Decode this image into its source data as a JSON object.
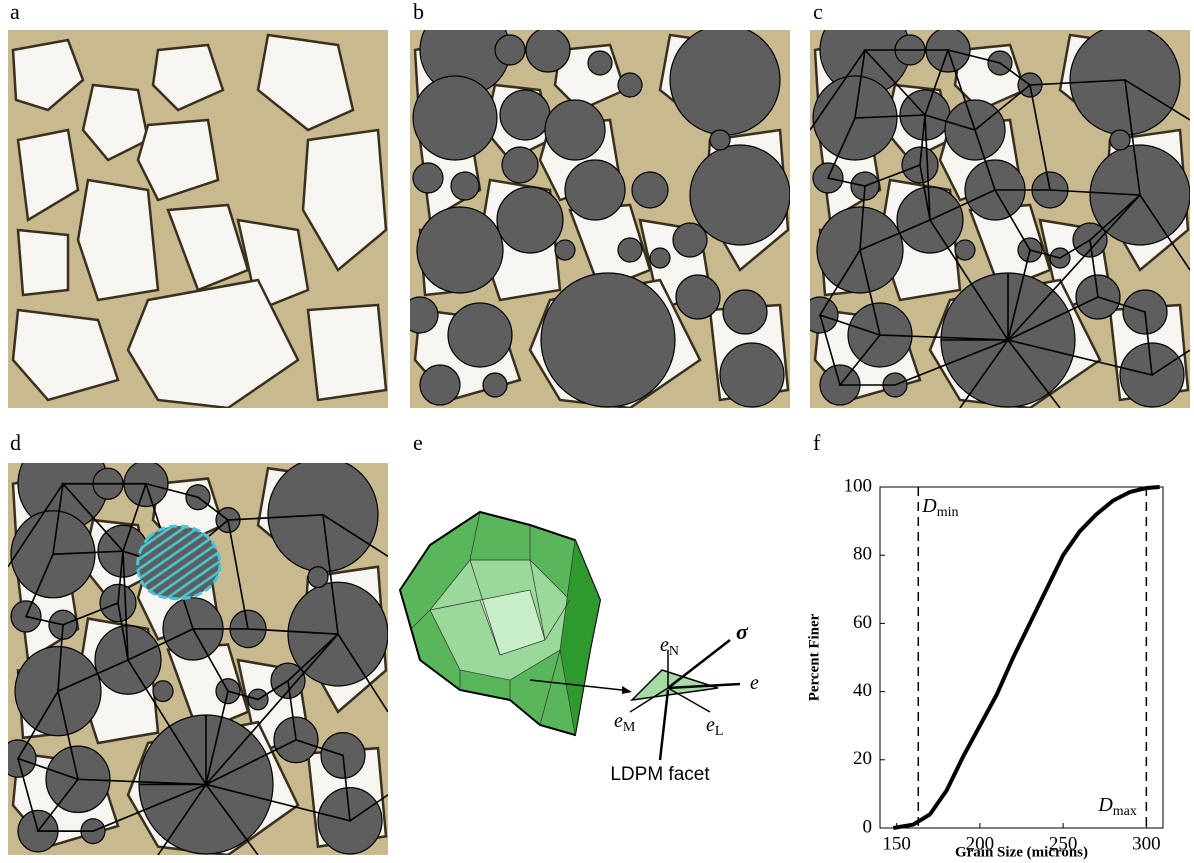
{
  "panels": [
    "a",
    "b",
    "c",
    "d",
    "e",
    "f"
  ],
  "facet_diagram": {
    "vectors": [
      {
        "base": "e",
        "sub": "N"
      },
      {
        "base": "σ",
        "sub": ""
      },
      {
        "base": "e",
        "sub": ""
      },
      {
        "base": "e",
        "sub": "M"
      },
      {
        "base": "e",
        "sub": "L"
      }
    ],
    "facet_label": "LDPM facet"
  },
  "chart_data": {
    "type": "line",
    "xlabel": "Grain Size (microns)",
    "ylabel": "Percent Finer",
    "xlim": [
      140,
      310
    ],
    "xticks": [
      150,
      200,
      250,
      300
    ],
    "ylim": [
      0,
      100
    ],
    "yticks": [
      0,
      20,
      40,
      60,
      80,
      100
    ],
    "series": [
      {
        "color": "#000000",
        "x": [
          148,
          160,
          170,
          180,
          190,
          200,
          210,
          220,
          230,
          240,
          250,
          260,
          270,
          280,
          290,
          300,
          308
        ],
        "values": [
          0,
          1,
          4,
          11,
          21,
          30,
          39,
          50,
          60,
          70,
          80,
          87,
          92,
          96,
          98.5,
          99.7,
          100
        ]
      }
    ],
    "reference_lines": [
      {
        "x": 163,
        "base": "D",
        "sub": "min"
      },
      {
        "x": 300,
        "base": "D",
        "sub": "max"
      }
    ]
  }
}
